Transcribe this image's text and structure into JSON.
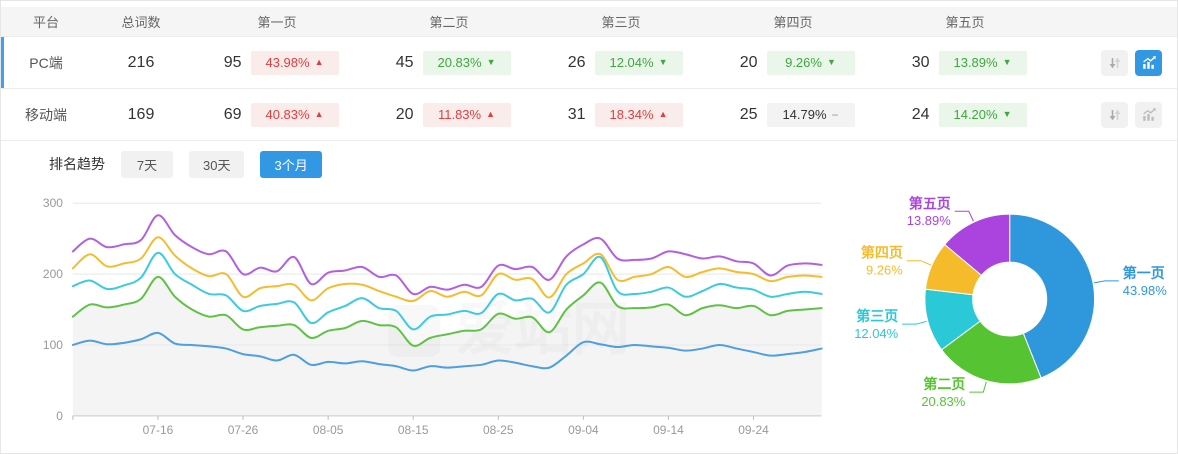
{
  "table": {
    "columns": [
      "平台",
      "总词数",
      "第一页",
      "第二页",
      "第三页",
      "第四页",
      "第五页"
    ],
    "rows": [
      {
        "platform": "PC端",
        "total": "216",
        "selected": true,
        "chart_active": true,
        "pages": [
          {
            "count": "95",
            "pct": "43.98%",
            "arrow": "▲",
            "tone": "rose"
          },
          {
            "count": "45",
            "pct": "20.83%",
            "arrow": "▼",
            "tone": "grn"
          },
          {
            "count": "26",
            "pct": "12.04%",
            "arrow": "▼",
            "tone": "grn"
          },
          {
            "count": "20",
            "pct": "9.26%",
            "arrow": "▼",
            "tone": "grn"
          },
          {
            "count": "30",
            "pct": "13.89%",
            "arrow": "▼",
            "tone": "grn"
          }
        ]
      },
      {
        "platform": "移动端",
        "total": "169",
        "selected": false,
        "chart_active": false,
        "pages": [
          {
            "count": "69",
            "pct": "40.83%",
            "arrow": "▲",
            "tone": "rose"
          },
          {
            "count": "20",
            "pct": "11.83%",
            "arrow": "▲",
            "tone": "rose"
          },
          {
            "count": "31",
            "pct": "18.34%",
            "arrow": "▲",
            "tone": "rose"
          },
          {
            "count": "25",
            "pct": "14.79%",
            "arrow": "−",
            "tone": "flat"
          },
          {
            "count": "24",
            "pct": "14.20%",
            "arrow": "▼",
            "tone": "grn"
          }
        ]
      }
    ],
    "row_icons": [
      "sort-icon",
      "trend-chart-icon"
    ]
  },
  "trend_section": {
    "label": "排名趋势",
    "tabs": [
      {
        "label": "7天",
        "active": false
      },
      {
        "label": "30天",
        "active": false
      },
      {
        "label": "3个月",
        "active": true
      }
    ]
  },
  "watermark": "爱站网",
  "colors": {
    "accent_blue": "#3398e4",
    "row_indicator": "#41a1ec",
    "badge_red_text": "#e03e3e",
    "badge_red_bg": "#fbecec",
    "badge_green_text": "#3fa83f",
    "badge_green_bg": "#e9f6e9",
    "badge_flat_bg": "#f3f3f3",
    "header_bg": "#f5f5f6",
    "grid_line": "#e8e8e8",
    "axis_text": "#999999"
  },
  "chart_data": [
    {
      "type": "line",
      "title": "排名趋势 (3个月)",
      "ylim": [
        0,
        300
      ],
      "y_ticks": [
        0,
        100,
        200,
        300
      ],
      "x_tick_labels": [
        "07-16",
        "07-26",
        "08-05",
        "08-15",
        "08-25",
        "09-04",
        "09-14",
        "09-24"
      ],
      "x_tick_days": [
        10,
        20,
        30,
        40,
        50,
        60,
        70,
        80
      ],
      "day_span": 88,
      "sample_step_days": 2,
      "grid": true,
      "legend": "none",
      "series": [
        {
          "name": "第五页",
          "color": "#b35fe0",
          "values": [
            232,
            250,
            238,
            242,
            248,
            283,
            255,
            238,
            228,
            232,
            200,
            209,
            204,
            224,
            186,
            202,
            205,
            210,
            196,
            198,
            172,
            182,
            178,
            185,
            182,
            212,
            207,
            210,
            192,
            225,
            242,
            250,
            222,
            220,
            222,
            232,
            228,
            222,
            225,
            218,
            215,
            198,
            212,
            215,
            213
          ]
        },
        {
          "name": "第四页",
          "color": "#f6bc30",
          "values": [
            208,
            228,
            211,
            215,
            222,
            252,
            226,
            208,
            197,
            200,
            168,
            180,
            183,
            185,
            163,
            180,
            186,
            185,
            176,
            168,
            162,
            176,
            168,
            175,
            170,
            200,
            192,
            193,
            167,
            200,
            215,
            228,
            192,
            196,
            200,
            210,
            196,
            203,
            208,
            203,
            200,
            190,
            196,
            198,
            196
          ]
        },
        {
          "name": "第三页",
          "color": "#3bcbde",
          "values": [
            183,
            191,
            179,
            184,
            195,
            230,
            200,
            185,
            172,
            170,
            148,
            155,
            158,
            160,
            131,
            146,
            155,
            166,
            152,
            148,
            122,
            140,
            143,
            148,
            145,
            172,
            163,
            165,
            146,
            185,
            200,
            224,
            176,
            172,
            175,
            181,
            168,
            176,
            186,
            181,
            178,
            168,
            172,
            175,
            172
          ]
        },
        {
          "name": "第二页",
          "color": "#5fc247",
          "area": true,
          "values": [
            140,
            157,
            153,
            157,
            165,
            196,
            168,
            150,
            140,
            142,
            122,
            125,
            127,
            128,
            110,
            120,
            124,
            134,
            128,
            125,
            99,
            110,
            115,
            120,
            122,
            144,
            137,
            139,
            118,
            150,
            170,
            188,
            155,
            152,
            153,
            157,
            142,
            152,
            156,
            152,
            155,
            142,
            148,
            150,
            152
          ]
        },
        {
          "name": "第一页",
          "color": "#4e9fe0",
          "values": [
            100,
            106,
            101,
            103,
            108,
            117,
            102,
            100,
            98,
            95,
            87,
            84,
            78,
            86,
            72,
            76,
            74,
            77,
            73,
            70,
            64,
            70,
            68,
            70,
            72,
            78,
            75,
            70,
            68,
            85,
            104,
            101,
            97,
            100,
            98,
            96,
            92,
            95,
            100,
            95,
            90,
            85,
            87,
            90,
            95
          ]
        }
      ]
    },
    {
      "type": "pie",
      "donut": true,
      "slices": [
        {
          "label": "第一页",
          "value": 43.98,
          "pct": "43.98%",
          "color": "#2f97dc"
        },
        {
          "label": "第二页",
          "value": 20.83,
          "pct": "20.83%",
          "color": "#55c332"
        },
        {
          "label": "第三页",
          "value": 12.04,
          "pct": "12.04%",
          "color": "#2bc8d8"
        },
        {
          "label": "第四页",
          "value": 9.26,
          "pct": "9.26%",
          "color": "#f6bb2a"
        },
        {
          "label": "第五页",
          "value": 13.89,
          "pct": "13.89%",
          "color": "#ab44de"
        }
      ]
    }
  ]
}
